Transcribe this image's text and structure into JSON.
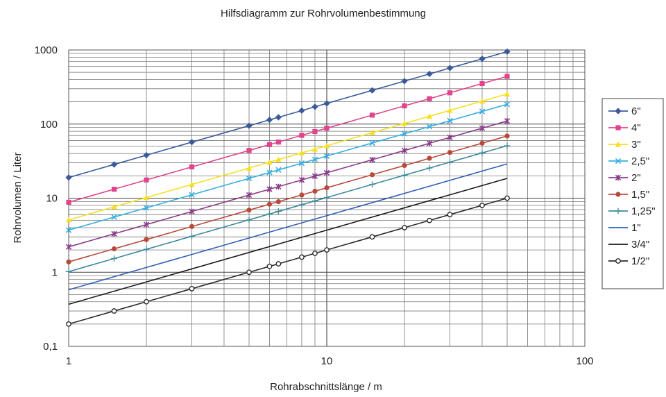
{
  "chart_data": {
    "type": "line",
    "title": "Hilfsdiagramm zur Rohrvolumenbestimmung",
    "xlabel": "Rohrabschnittslänge / m",
    "ylabel": "Rohrvolumen / Liter",
    "x_scale": "log",
    "y_scale": "log",
    "xlim": [
      1,
      100
    ],
    "ylim": [
      0.1,
      1000
    ],
    "x_tick_labels": [
      "1",
      "10",
      "100"
    ],
    "y_tick_labels": [
      "0,1",
      "1",
      "10",
      "100",
      "1000"
    ],
    "grid": true,
    "legend_position": "right",
    "series": [
      {
        "name": "6\"",
        "color": "#3a5a9a",
        "marker": "diamond",
        "x": [
          1,
          1.5,
          2,
          3,
          5,
          6,
          6.5,
          8,
          9,
          10,
          15,
          20,
          25,
          30,
          40,
          50
        ],
        "values": [
          19,
          28.5,
          38,
          57,
          95,
          114,
          123.5,
          152,
          171,
          190,
          285,
          380,
          475,
          570,
          760,
          950
        ]
      },
      {
        "name": "4\"",
        "color": "#e0448c",
        "marker": "square",
        "x": [
          1,
          1.5,
          2,
          3,
          5,
          6,
          6.5,
          8,
          9,
          10,
          15,
          20,
          25,
          30,
          40,
          50
        ],
        "values": [
          8.8,
          13.2,
          17.6,
          26.4,
          44,
          52.8,
          57.2,
          70.4,
          79.2,
          88,
          132,
          176,
          220,
          264,
          352,
          440
        ]
      },
      {
        "name": "3\"",
        "color": "#f5e020",
        "marker": "triangle",
        "x": [
          1,
          1.5,
          2,
          3,
          5,
          6,
          6.5,
          8,
          9,
          10,
          15,
          20,
          25,
          30,
          40,
          50
        ],
        "values": [
          5.1,
          7.65,
          10.2,
          15.3,
          25.5,
          30.6,
          33.15,
          40.8,
          45.9,
          51,
          76.5,
          102,
          127.5,
          153,
          204,
          255
        ]
      },
      {
        "name": "2,5\"",
        "color": "#34aee0",
        "marker": "x",
        "x": [
          1,
          1.5,
          2,
          3,
          5,
          6,
          6.5,
          8,
          9,
          10,
          15,
          20,
          25,
          30,
          40,
          50
        ],
        "values": [
          3.7,
          5.55,
          7.4,
          11.1,
          18.5,
          22.2,
          24.05,
          29.6,
          33.3,
          37,
          55.5,
          74,
          92.5,
          111,
          148,
          185
        ]
      },
      {
        "name": "2\"",
        "color": "#8a3c8a",
        "marker": "star",
        "x": [
          1,
          1.5,
          2,
          3,
          5,
          6,
          6.5,
          8,
          9,
          10,
          15,
          20,
          25,
          30,
          40,
          50
        ],
        "values": [
          2.2,
          3.3,
          4.4,
          6.6,
          11,
          13.2,
          14.3,
          17.6,
          19.8,
          22,
          33,
          44,
          55,
          66,
          88,
          110
        ]
      },
      {
        "name": "1,5\"",
        "color": "#b84a3c",
        "marker": "circle",
        "x": [
          1,
          1.5,
          2,
          3,
          5,
          6,
          6.5,
          8,
          9,
          10,
          15,
          20,
          25,
          30,
          40,
          50
        ],
        "values": [
          1.38,
          2.07,
          2.76,
          4.14,
          6.9,
          8.28,
          8.97,
          11.04,
          12.42,
          13.8,
          20.7,
          27.6,
          34.5,
          41.4,
          55.2,
          69
        ]
      },
      {
        "name": "1,25\"",
        "color": "#3c8a9a",
        "marker": "plus",
        "x": [
          1,
          1.5,
          2,
          3,
          5,
          6,
          6.5,
          8,
          9,
          10,
          15,
          20,
          25,
          30,
          40,
          50
        ],
        "values": [
          1.02,
          1.53,
          2.04,
          3.06,
          5.1,
          6.12,
          6.63,
          8.16,
          9.18,
          10.2,
          15.3,
          20.4,
          25.5,
          30.6,
          40.8,
          51
        ]
      },
      {
        "name": "1\"",
        "color": "#2f5fb8",
        "marker": "none",
        "x": [
          1,
          50
        ],
        "values": [
          0.58,
          29
        ]
      },
      {
        "name": "3/4\"",
        "color": "#1a1a1a",
        "marker": "none",
        "x": [
          1,
          50
        ],
        "values": [
          0.37,
          18.5
        ]
      },
      {
        "name": "1/2\"",
        "color": "#2a2a2a",
        "marker": "open-circle",
        "x": [
          1,
          1.5,
          2,
          3,
          5,
          6,
          6.5,
          8,
          9,
          10,
          15,
          20,
          25,
          30,
          40,
          50
        ],
        "values": [
          0.2,
          0.3,
          0.4,
          0.6,
          1,
          1.2,
          1.3,
          1.6,
          1.8,
          2,
          3,
          4,
          5,
          6,
          8,
          10
        ]
      }
    ]
  }
}
